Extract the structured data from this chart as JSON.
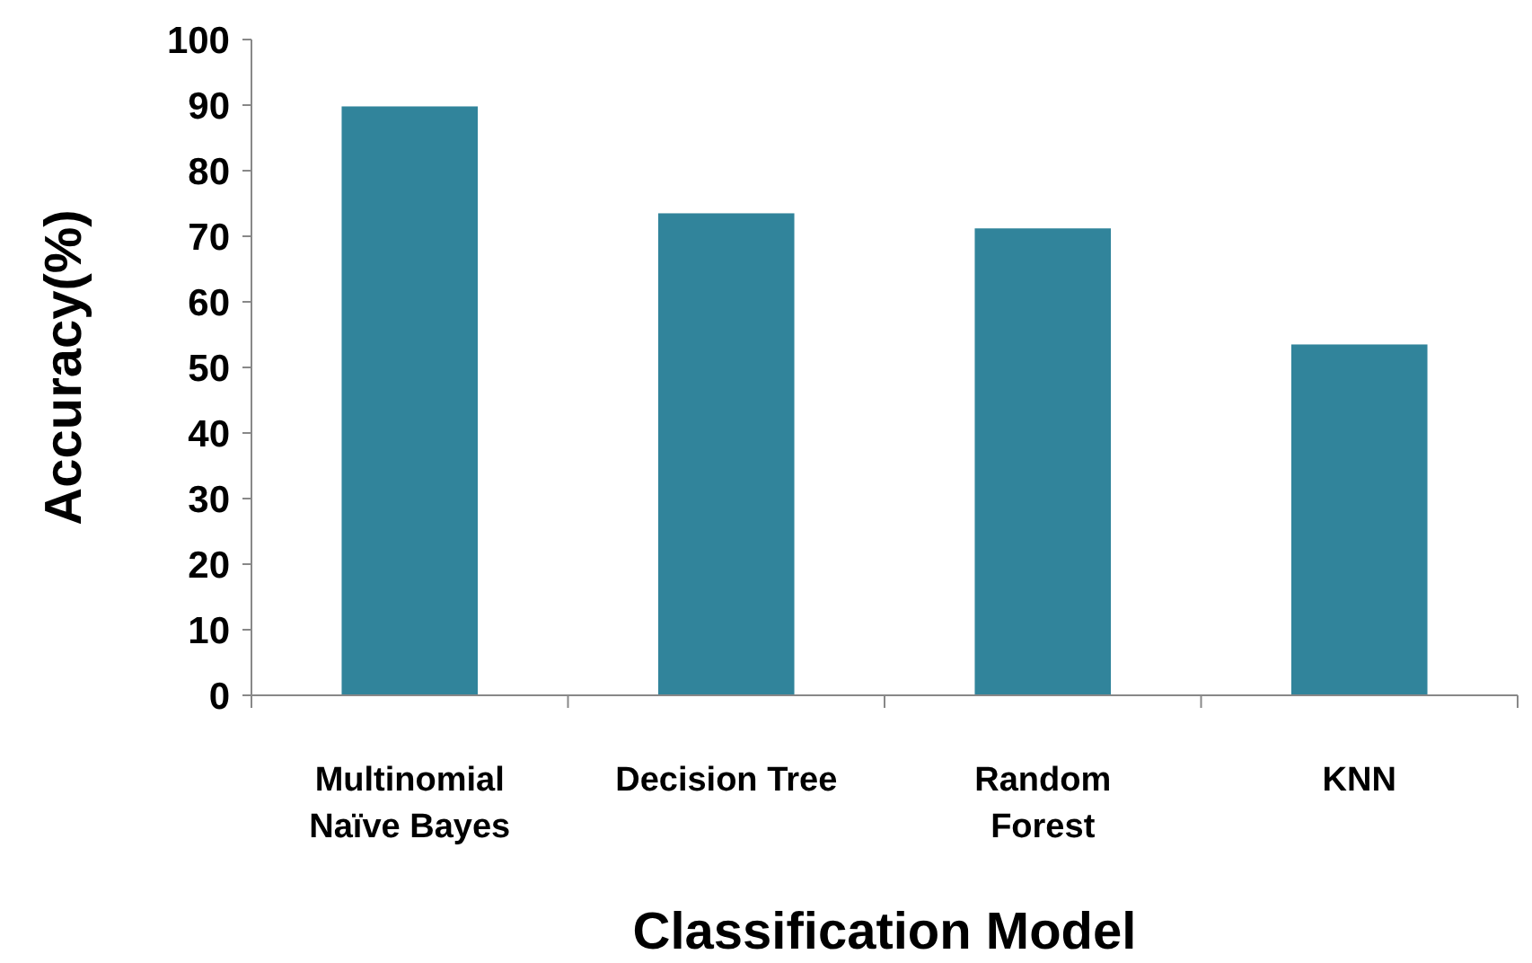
{
  "chart_data": {
    "type": "bar",
    "xlabel": "Classification Model",
    "ylabel": "Accuracy(%)",
    "categories": [
      "Multinomial\nNaïve Bayes",
      "Decision Tree",
      "Random\nForest",
      "KNN"
    ],
    "values": [
      89.8,
      73.5,
      71.2,
      53.5
    ],
    "color": "#31849b",
    "ylim": [
      0,
      100
    ],
    "yticks": [
      0,
      10,
      20,
      30,
      40,
      50,
      60,
      70,
      80,
      90,
      100
    ],
    "grid": false
  }
}
